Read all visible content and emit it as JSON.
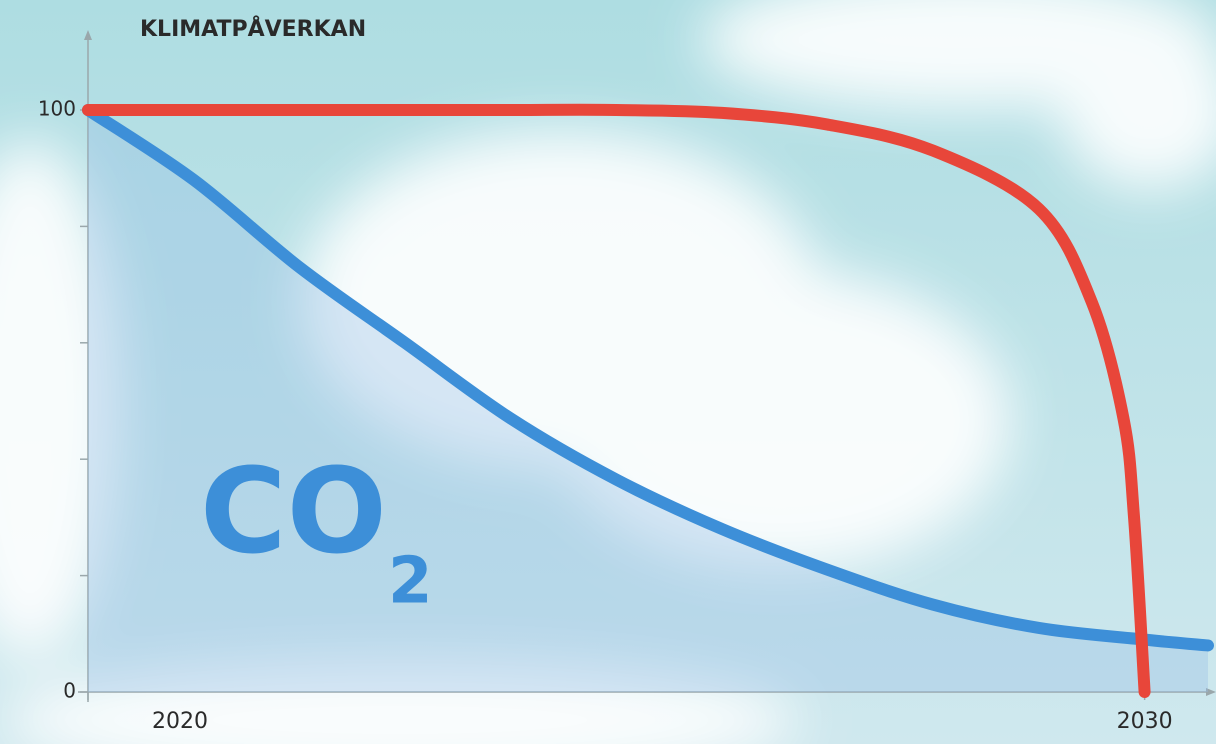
{
  "chart_data": {
    "type": "line",
    "y_label": "KLIMATPÅVERKAN",
    "annotation": {
      "text": "CO",
      "subscript": "2"
    },
    "xlim": [
      2020,
      2030.6
    ],
    "xticks": [
      2020,
      2030
    ],
    "ylim": [
      0,
      100
    ],
    "yticks": [
      0,
      100
    ],
    "yminor": [
      20,
      40,
      60,
      80
    ],
    "series": [
      {
        "color": "#e8463a",
        "x": [
          2020,
          2021,
          2022,
          2023,
          2024,
          2025,
          2026,
          2027,
          2028,
          2029,
          2029.5,
          2029.8,
          2029.9,
          2030
        ],
        "values": [
          100,
          100,
          100,
          100,
          100,
          100,
          99.5,
          97.5,
          93,
          83,
          67,
          47,
          30,
          0
        ]
      },
      {
        "color": "#3d8fd8",
        "fill": "rgba(150,190,230,0.35)",
        "x": [
          2020,
          2021,
          2022,
          2023,
          2024,
          2025,
          2026,
          2027,
          2028,
          2029,
          2030,
          2030.6
        ],
        "values": [
          100,
          88,
          73,
          60,
          47,
          36.5,
          28,
          21,
          15,
          11,
          9,
          8
        ]
      }
    ]
  }
}
